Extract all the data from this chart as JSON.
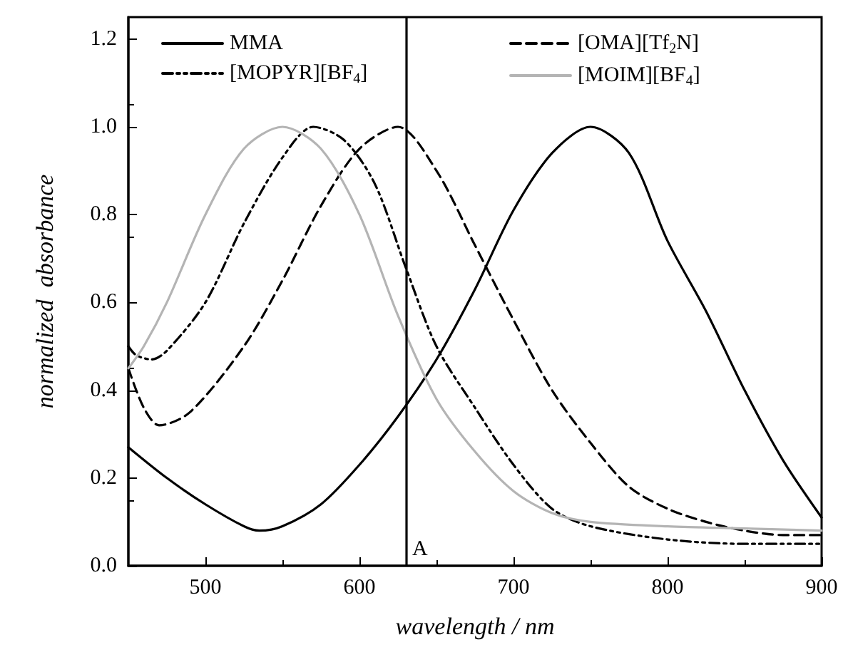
{
  "chart_data": {
    "type": "line",
    "xlabel": "wavelength / nm",
    "ylabel": "normalized  absorbance",
    "xlim": [
      450,
      900
    ],
    "xticks": [
      500,
      600,
      700,
      800,
      900
    ],
    "ylim": [
      0,
      1.25
    ],
    "yticks": [
      {
        "value": 0,
        "label": "0.0"
      },
      {
        "value": 0.2,
        "label": "0.2"
      },
      {
        "value": 0.4,
        "label": "0.4"
      },
      {
        "value": 0.6,
        "label": "0.6"
      },
      {
        "value": 0.8,
        "label": "0.8"
      },
      {
        "value": 1,
        "label": "1.0"
      },
      {
        "value": 1.2,
        "label": "1.2"
      }
    ],
    "grid": false,
    "legend": "top",
    "marker": "none",
    "ref_lines": [
      {
        "axis": "x",
        "value": 630,
        "label": "A",
        "color": "#000000"
      }
    ],
    "series": [
      {
        "name": "MMA",
        "color": "#000000",
        "line_style": "solid",
        "x": [
          450,
          475,
          500,
          525,
          535,
          550,
          575,
          600,
          625,
          650,
          675,
          700,
          725,
          750,
          775,
          800,
          825,
          850,
          875,
          900
        ],
        "values": [
          0.27,
          0.2,
          0.14,
          0.09,
          0.08,
          0.09,
          0.14,
          0.23,
          0.34,
          0.47,
          0.63,
          0.81,
          0.94,
          1.0,
          0.94,
          0.74,
          0.58,
          0.4,
          0.24,
          0.11
        ]
      },
      {
        "name": "[OMA][Tf$_{2}$N]",
        "color": "#000000",
        "line_style": "dashed",
        "x": [
          450,
          460,
          470,
          490,
          525,
          550,
          575,
          600,
          625,
          650,
          675,
          700,
          725,
          750,
          775,
          800,
          825,
          850,
          875,
          900
        ],
        "values": [
          0.45,
          0.36,
          0.32,
          0.35,
          0.5,
          0.65,
          0.82,
          0.95,
          1.0,
          0.9,
          0.73,
          0.56,
          0.4,
          0.28,
          0.18,
          0.13,
          0.1,
          0.08,
          0.07,
          0.07
        ]
      },
      {
        "name": "[MOPYR][BF$_{4}$]",
        "color": "#000000",
        "line_style": "dotted",
        "x": [
          450,
          455,
          465,
          475,
          500,
          525,
          550,
          570,
          590,
          610,
          630,
          650,
          675,
          700,
          725,
          750,
          800,
          850,
          900
        ],
        "values": [
          0.5,
          0.48,
          0.47,
          0.49,
          0.6,
          0.78,
          0.93,
          1.0,
          0.97,
          0.87,
          0.68,
          0.5,
          0.36,
          0.23,
          0.13,
          0.09,
          0.06,
          0.05,
          0.05
        ]
      },
      {
        "name": "[MOIM][BF$_{4}$]",
        "color": "#b4b4b4",
        "line_style": "solid",
        "x": [
          450,
          460,
          475,
          500,
          525,
          550,
          575,
          600,
          625,
          650,
          675,
          700,
          725,
          750,
          800,
          850,
          900
        ],
        "values": [
          0.45,
          0.5,
          0.6,
          0.8,
          0.95,
          1.0,
          0.95,
          0.8,
          0.57,
          0.38,
          0.26,
          0.17,
          0.12,
          0.1,
          0.09,
          0.085,
          0.08
        ]
      }
    ]
  }
}
